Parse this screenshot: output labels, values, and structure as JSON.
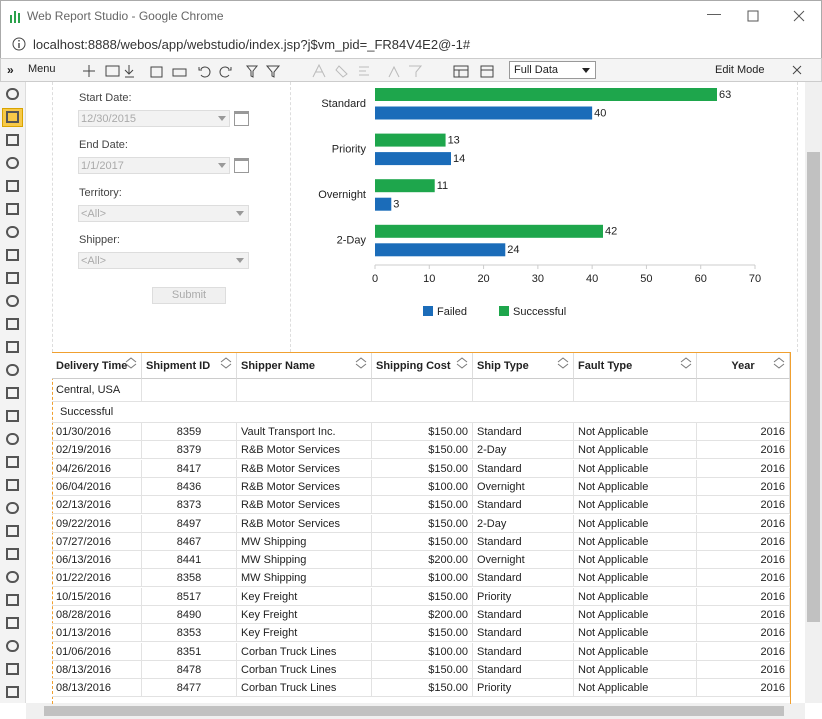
{
  "window": {
    "title": "Web Report Studio - Google Chrome",
    "url": "localhost:8888/webos/app/webstudio/index.jsp?j$vm_pid=_FR84V4E2@-1#"
  },
  "toolbar": {
    "menu": "Menu",
    "view": "Full Data",
    "mode": "Edit Mode"
  },
  "form": {
    "fields": [
      {
        "label": "Start Date:",
        "value": "12/30/2015"
      },
      {
        "label": "End Date:",
        "value": "1/1/2017"
      },
      {
        "label": "Territory:",
        "value": "<All>"
      },
      {
        "label": "Shipper:",
        "value": "<All>"
      }
    ],
    "submit": "Submit"
  },
  "chart_data": {
    "type": "bar",
    "orientation": "horizontal",
    "categories": [
      "Standard",
      "Priority",
      "Overnight",
      "2-Day"
    ],
    "series": [
      {
        "name": "Failed",
        "color": "#1b6cb9",
        "values": [
          40,
          14,
          3,
          24
        ]
      },
      {
        "name": "Successful",
        "color": "#1ea64c",
        "values": [
          63,
          13,
          11,
          42
        ]
      }
    ],
    "xlim": [
      0,
      70
    ],
    "xticks": [
      0,
      10,
      20,
      30,
      40,
      50,
      60,
      70
    ],
    "legend": "bottom"
  },
  "table": {
    "columns": [
      "Delivery Time",
      "Shipment ID",
      "Shipper Name",
      "Shipping Cost",
      "Ship Type",
      "Fault Type",
      "Year"
    ],
    "group": "Central, USA",
    "subgroup": "Successful",
    "rows": [
      [
        "01/30/2016",
        "8359",
        "Vault Transport Inc.",
        "$150.00",
        "Standard",
        "Not Applicable",
        "2016"
      ],
      [
        "02/19/2016",
        "8379",
        "R&B Motor Services",
        "$150.00",
        "2-Day",
        "Not Applicable",
        "2016"
      ],
      [
        "04/26/2016",
        "8417",
        "R&B Motor Services",
        "$150.00",
        "Standard",
        "Not Applicable",
        "2016"
      ],
      [
        "06/04/2016",
        "8436",
        "R&B Motor Services",
        "$100.00",
        "Overnight",
        "Not Applicable",
        "2016"
      ],
      [
        "02/13/2016",
        "8373",
        "R&B Motor Services",
        "$150.00",
        "Standard",
        "Not Applicable",
        "2016"
      ],
      [
        "09/22/2016",
        "8497",
        "R&B Motor Services",
        "$150.00",
        "2-Day",
        "Not Applicable",
        "2016"
      ],
      [
        "07/27/2016",
        "8467",
        "MW Shipping",
        "$150.00",
        "Standard",
        "Not Applicable",
        "2016"
      ],
      [
        "06/13/2016",
        "8441",
        "MW Shipping",
        "$200.00",
        "Overnight",
        "Not Applicable",
        "2016"
      ],
      [
        "01/22/2016",
        "8358",
        "MW Shipping",
        "$100.00",
        "Standard",
        "Not Applicable",
        "2016"
      ],
      [
        "10/15/2016",
        "8517",
        "Key Freight",
        "$150.00",
        "Priority",
        "Not Applicable",
        "2016"
      ],
      [
        "08/28/2016",
        "8490",
        "Key Freight",
        "$200.00",
        "Standard",
        "Not Applicable",
        "2016"
      ],
      [
        "01/13/2016",
        "8353",
        "Key Freight",
        "$150.00",
        "Standard",
        "Not Applicable",
        "2016"
      ],
      [
        "01/06/2016",
        "8351",
        "Corban Truck Lines",
        "$100.00",
        "Standard",
        "Not Applicable",
        "2016"
      ],
      [
        "08/13/2016",
        "8478",
        "Corban Truck Lines",
        "$150.00",
        "Standard",
        "Not Applicable",
        "2016"
      ],
      [
        "08/13/2016",
        "8477",
        "Corban Truck Lines",
        "$150.00",
        "Priority",
        "Not Applicable",
        "2016"
      ]
    ]
  }
}
